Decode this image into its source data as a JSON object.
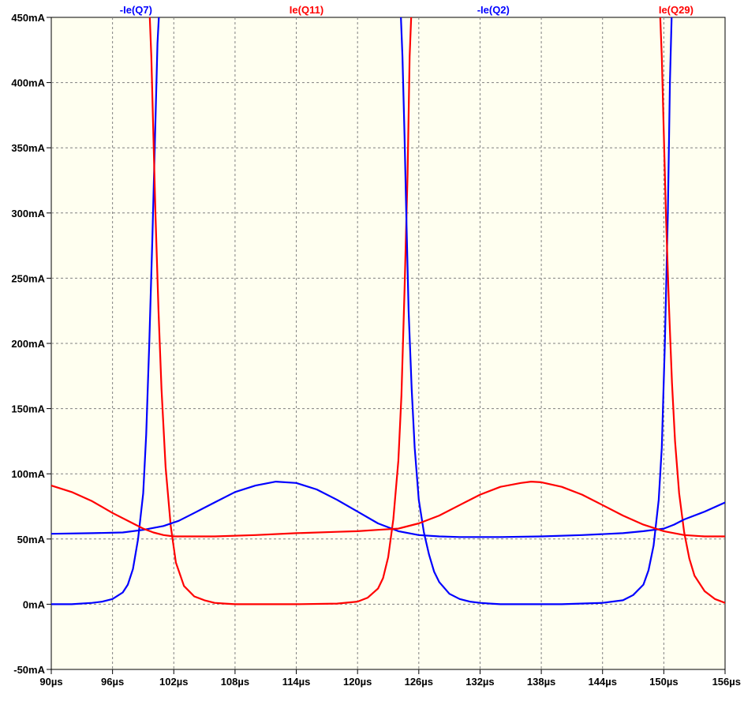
{
  "chart_data": {
    "type": "line",
    "title": "",
    "xlabel": "",
    "ylabel": "",
    "xlim": [
      90,
      156
    ],
    "ylim": [
      -50,
      450
    ],
    "grid": true,
    "legend_placement": "top",
    "background": "#fffff0",
    "x_ticks": [
      {
        "value": 90,
        "label": "90µs"
      },
      {
        "value": 96,
        "label": "96µs"
      },
      {
        "value": 102,
        "label": "102µs"
      },
      {
        "value": 108,
        "label": "108µs"
      },
      {
        "value": 114,
        "label": "114µs"
      },
      {
        "value": 120,
        "label": "120µs"
      },
      {
        "value": 126,
        "label": "126µs"
      },
      {
        "value": 132,
        "label": "132µs"
      },
      {
        "value": 138,
        "label": "138µs"
      },
      {
        "value": 144,
        "label": "144µs"
      },
      {
        "value": 150,
        "label": "150µs"
      },
      {
        "value": 156,
        "label": "156µs"
      }
    ],
    "y_ticks": [
      {
        "value": -50,
        "label": "-50mA"
      },
      {
        "value": 0,
        "label": "0mA"
      },
      {
        "value": 50,
        "label": "50mA"
      },
      {
        "value": 100,
        "label": "100mA"
      },
      {
        "value": 150,
        "label": "150mA"
      },
      {
        "value": 200,
        "label": "200mA"
      },
      {
        "value": 250,
        "label": "250mA"
      },
      {
        "value": 300,
        "label": "300mA"
      },
      {
        "value": 350,
        "label": "350mA"
      },
      {
        "value": 400,
        "label": "400mA"
      },
      {
        "value": 450,
        "label": "450mA"
      }
    ],
    "legend": [
      {
        "label": "-Ie(Q7)",
        "color": "#0000ff",
        "x": 98.3
      },
      {
        "label": "Ie(Q11)",
        "color": "#ff0000",
        "x": 115.0
      },
      {
        "label": "-Ie(Q2)",
        "color": "#0000ff",
        "x": 133.3
      },
      {
        "label": "Ie(Q29)",
        "color": "#ff0000",
        "x": 151.2
      }
    ],
    "series": [
      {
        "color": "#0000ff",
        "x": [
          90,
          92,
          94,
          95,
          96,
          97,
          97.5,
          98,
          98.5,
          99,
          99.3,
          99.6,
          99.9,
          100.2,
          100.4,
          100.6
        ],
        "y": [
          0,
          0,
          1,
          2,
          4,
          9,
          15,
          27,
          50,
          85,
          130,
          200,
          280,
          370,
          430,
          460
        ]
      },
      {
        "color": "#ff0000",
        "x": [
          99.6,
          99.8,
          100.0,
          100.2,
          100.5,
          100.8,
          101.2,
          101.7,
          102.2,
          103,
          104,
          105,
          106,
          107,
          108,
          110,
          114,
          118,
          120,
          121,
          122,
          122.5,
          123,
          123.5,
          124,
          124.3,
          124.6,
          124.9,
          125.1,
          125.3
        ],
        "y": [
          460,
          420,
          360,
          300,
          225,
          165,
          105,
          60,
          32,
          14,
          6,
          3,
          1,
          0.5,
          0,
          0,
          0,
          0.5,
          2,
          5,
          12,
          20,
          36,
          65,
          110,
          160,
          240,
          330,
          420,
          460
        ]
      },
      {
        "color": "#0000ff",
        "x": [
          124.2,
          124.4,
          124.6,
          124.8,
          125.0,
          125.3,
          125.6,
          126.0,
          126.5,
          127,
          127.5,
          128,
          129,
          130,
          131,
          132,
          133,
          134,
          136,
          140,
          144,
          146,
          147,
          148,
          148.5,
          149,
          149.5,
          149.8,
          150.1,
          150.4,
          150.6,
          150.8
        ],
        "y": [
          460,
          420,
          360,
          290,
          225,
          165,
          120,
          80,
          55,
          38,
          25,
          17,
          8,
          4,
          2,
          1,
          0.5,
          0,
          0,
          0,
          1,
          3,
          7,
          15,
          26,
          45,
          80,
          120,
          200,
          300,
          400,
          460
        ]
      },
      {
        "color": "#ff0000",
        "x": [
          149.6,
          149.8,
          150.0,
          150.2,
          150.5,
          150.8,
          151.1,
          151.5,
          152,
          152.5,
          153,
          154,
          155,
          156
        ],
        "y": [
          460,
          420,
          360,
          300,
          230,
          170,
          125,
          85,
          55,
          35,
          22,
          10,
          4,
          1
        ]
      },
      {
        "color": "#0000ff",
        "x": [
          90,
          94,
          97,
          99,
          101,
          102.5,
          104,
          106,
          108,
          110,
          112,
          114,
          116,
          118,
          120,
          122,
          124,
          126,
          128,
          130,
          134,
          138,
          142,
          146,
          148,
          150,
          151,
          152,
          154,
          156
        ],
        "y": [
          54,
          54.5,
          55,
          57,
          60,
          64,
          70,
          78,
          86,
          91,
          94,
          93,
          88,
          80,
          71,
          62,
          56,
          53,
          52,
          51.5,
          51.5,
          52,
          53,
          54.5,
          56,
          58,
          61,
          65,
          71,
          78
        ]
      },
      {
        "color": "#ff0000",
        "x": [
          90,
          92,
          94,
          96,
          98,
          99,
          100,
          101,
          102,
          106,
          110,
          114,
          118,
          120,
          122,
          124,
          126,
          128,
          130,
          132,
          134,
          136,
          137,
          138,
          140,
          142,
          144,
          146,
          148,
          150,
          152,
          154,
          156
        ],
        "y": [
          91,
          86,
          79,
          70,
          62,
          58,
          55,
          53,
          52,
          52,
          53,
          54.5,
          55.5,
          56,
          57,
          58,
          62,
          68,
          76,
          84,
          90,
          93,
          94,
          93.5,
          90,
          84,
          76,
          68,
          61,
          56,
          53,
          52,
          52
        ]
      }
    ]
  }
}
